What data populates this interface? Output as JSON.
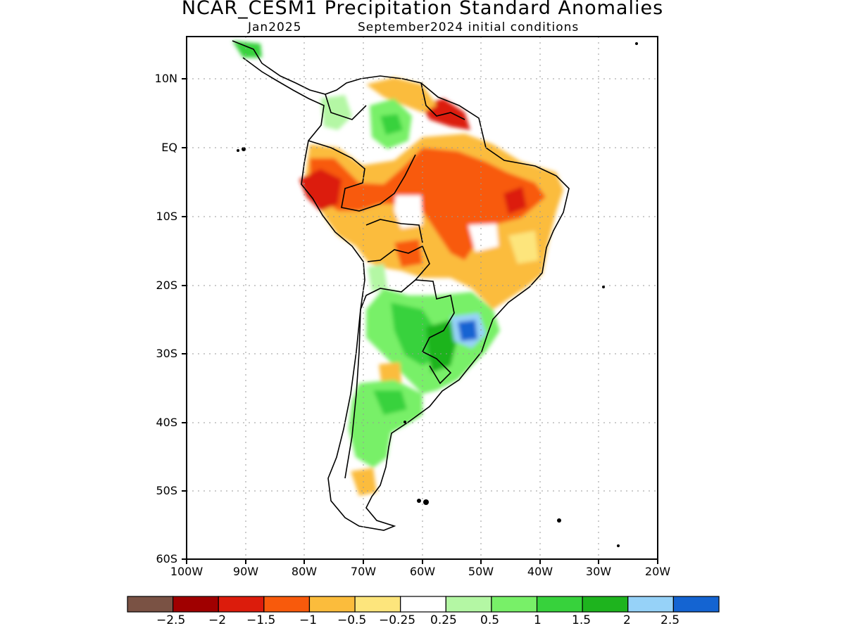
{
  "title": "NCAR_CESM1 Precipitation Standard Anomalies",
  "subtitle": {
    "left": "Jan2025",
    "right": "September2024 initial conditions"
  },
  "axes": {
    "lat_labels": [
      "10N",
      "EQ",
      "10S",
      "20S",
      "30S",
      "40S",
      "50S",
      "60S"
    ],
    "lon_labels": [
      "100W",
      "90W",
      "80W",
      "70W",
      "60W",
      "50W",
      "40W",
      "30W",
      "20W"
    ],
    "lat_range": [
      -60,
      15
    ],
    "lon_range": [
      -100,
      -20
    ],
    "grid": "dotted"
  },
  "colorbar": {
    "colors": [
      "#7a5244",
      "#a00000",
      "#dc1c0c",
      "#f85a0c",
      "#fbbc3c",
      "#fde57c",
      "#ffffff",
      "#b4f7a4",
      "#78f068",
      "#37d23c",
      "#1eb41e",
      "#96d2f8",
      "#1464d2"
    ],
    "labels": [
      "-2.5",
      "-2",
      "-1.5",
      "-1",
      "-0.5",
      "-0.25",
      "0.25",
      "0.5",
      "1",
      "1.5",
      "2",
      "2.5"
    ]
  },
  "land_color": "#ffffff",
  "outline_color": "#000000"
}
